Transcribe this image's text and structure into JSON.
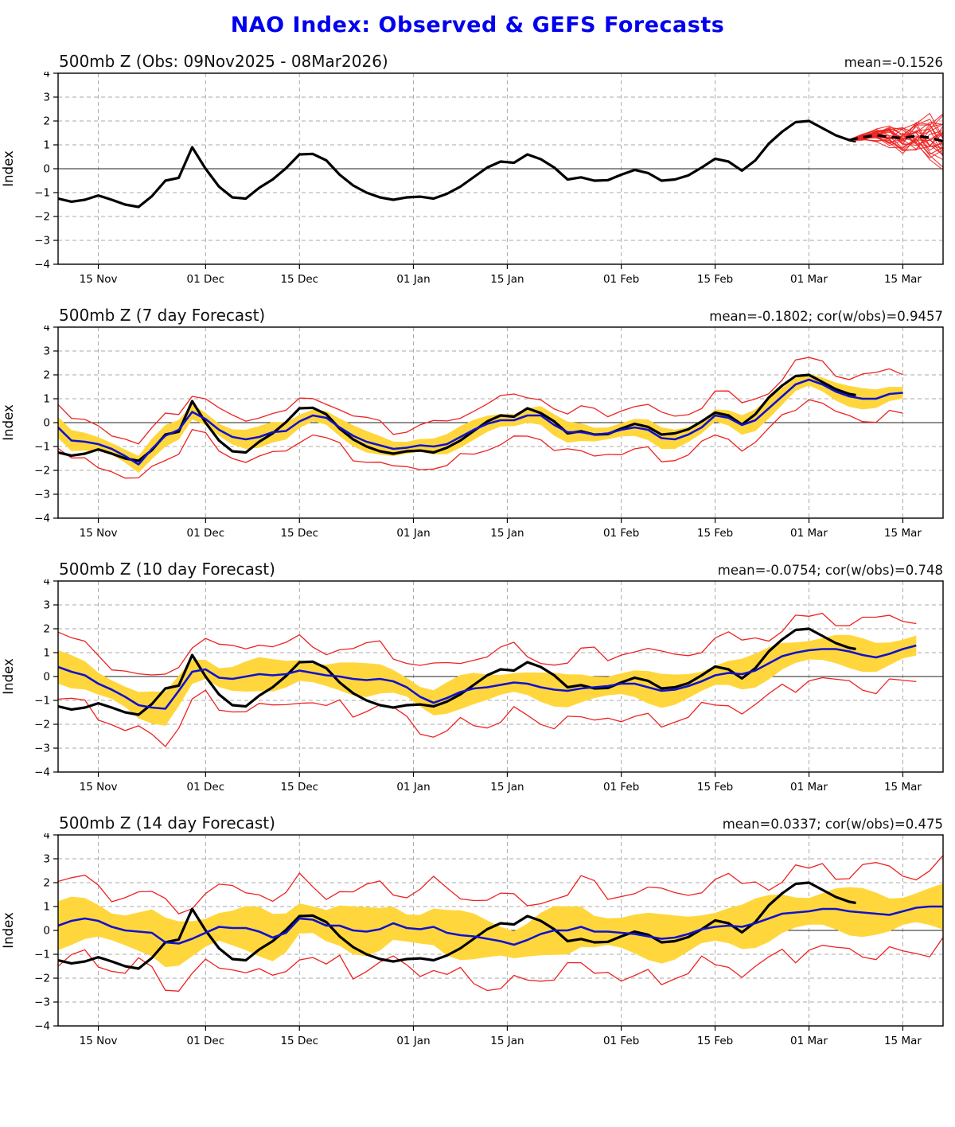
{
  "title": "NAO Index: Observed & GEFS Forecasts",
  "title_color": "#0000ee",
  "colors": {
    "obs": "#000000",
    "forecast_mean": "#1111cc",
    "spread_band": "#ffd73d",
    "envelope": "#ee2222",
    "grid": "#aaaaaa",
    "zero_line": "#222222"
  },
  "x_axis": {
    "tick_labels": [
      "15 Nov",
      "01 Dec",
      "15 Dec",
      "01 Jan",
      "15 Jan",
      "01 Feb",
      "15 Feb",
      "01 Mar",
      "15 Mar"
    ],
    "tick_days": [
      6,
      22,
      36,
      53,
      67,
      84,
      98,
      112,
      126
    ],
    "domain_days": [
      0,
      132
    ]
  },
  "y_axis": {
    "label": "Index",
    "ticks": [
      4,
      3,
      2,
      1,
      0,
      -1,
      -2,
      -3,
      -4
    ],
    "range": [
      -4,
      4
    ]
  },
  "observed": {
    "day_start": 0,
    "day_step": 2,
    "last_day": 119,
    "values": [
      -1.25,
      -1.38,
      -1.3,
      -1.12,
      -1.3,
      -1.5,
      -1.6,
      -1.15,
      -0.5,
      -0.38,
      0.9,
      0.0,
      -0.75,
      -1.2,
      -1.25,
      -0.8,
      -0.45,
      0.02,
      0.6,
      0.62,
      0.35,
      -0.25,
      -0.7,
      -1.0,
      -1.2,
      -1.3,
      -1.2,
      -1.17,
      -1.25,
      -1.05,
      -0.75,
      -0.35,
      0.05,
      0.3,
      0.25,
      0.6,
      0.4,
      0.05,
      -0.45,
      -0.36,
      -0.5,
      -0.48,
      -0.25,
      -0.05,
      -0.18,
      -0.5,
      -0.45,
      -0.28,
      0.05,
      0.42,
      0.3,
      -0.08,
      0.35,
      1.05,
      1.55,
      1.95,
      2.0,
      1.7,
      1.4,
      1.2,
      1.15
    ]
  },
  "chart_data": [
    {
      "type": "line",
      "title": "500mb Z (Obs: 09Nov2025 - 08Mar2026)",
      "stats": "mean=-0.1526",
      "ensemble": {
        "day_start": 118,
        "day_step": 2,
        "members": 26,
        "mean": [
          1.2,
          1.32,
          1.4,
          1.33,
          1.28,
          1.38,
          1.3,
          1.15
        ],
        "spread": [
          0.03,
          0.12,
          0.28,
          0.42,
          0.55,
          0.7,
          0.85,
          1.0
        ]
      }
    },
    {
      "type": "line",
      "title": "500mb Z (7 day Forecast)",
      "stats": "mean=-0.1802; cor(w/obs)=0.9457",
      "forecast": {
        "day_step": 2,
        "yellow_halfwidth": 0.35,
        "red_halfwidth": 0.85,
        "values": [
          -0.2,
          -0.75,
          -0.8,
          -0.9,
          -1.1,
          -1.4,
          -1.75,
          -1.1,
          -0.55,
          -0.3,
          0.45,
          0.15,
          -0.3,
          -0.6,
          -0.7,
          -0.6,
          -0.4,
          -0.35,
          0.05,
          0.3,
          0.2,
          -0.2,
          -0.55,
          -0.8,
          -0.95,
          -1.1,
          -1.05,
          -0.95,
          -1.0,
          -0.9,
          -0.6,
          -0.3,
          -0.05,
          0.1,
          0.1,
          0.3,
          0.3,
          -0.1,
          -0.4,
          -0.4,
          -0.5,
          -0.45,
          -0.3,
          -0.2,
          -0.3,
          -0.65,
          -0.7,
          -0.5,
          -0.2,
          0.3,
          0.2,
          -0.1,
          0.1,
          0.6,
          1.1,
          1.6,
          1.8,
          1.6,
          1.3,
          1.1,
          1.0,
          1.0,
          1.2,
          1.25
        ]
      }
    },
    {
      "type": "line",
      "title": "500mb Z (10 day Forecast)",
      "stats": "mean=-0.0754; cor(w/obs)=0.748",
      "forecast": {
        "day_step": 2,
        "yellow_halfwidth": 0.55,
        "red_halfwidth": 1.3,
        "values": [
          0.4,
          0.2,
          0.05,
          -0.3,
          -0.55,
          -0.85,
          -1.2,
          -1.3,
          -1.35,
          -0.6,
          0.2,
          0.3,
          -0.05,
          -0.1,
          0.0,
          0.1,
          0.05,
          0.1,
          0.25,
          0.15,
          0.05,
          0.0,
          -0.1,
          -0.15,
          -0.1,
          -0.2,
          -0.45,
          -0.85,
          -1.1,
          -0.9,
          -0.65,
          -0.5,
          -0.45,
          -0.35,
          -0.25,
          -0.3,
          -0.45,
          -0.55,
          -0.6,
          -0.5,
          -0.45,
          -0.4,
          -0.3,
          -0.3,
          -0.45,
          -0.6,
          -0.55,
          -0.4,
          -0.2,
          0.05,
          0.15,
          0.1,
          0.25,
          0.55,
          0.85,
          1.0,
          1.1,
          1.15,
          1.15,
          1.05,
          0.9,
          0.8,
          0.95,
          1.15,
          1.3
        ]
      }
    },
    {
      "type": "line",
      "title": "500mb Z (14 day Forecast)",
      "stats": "mean=0.0337; cor(w/obs)=0.475",
      "forecast": {
        "day_step": 2,
        "yellow_halfwidth": 0.8,
        "red_halfwidth": 1.65,
        "values": [
          0.2,
          0.4,
          0.5,
          0.4,
          0.15,
          0.0,
          -0.05,
          -0.1,
          -0.5,
          -0.55,
          -0.35,
          -0.1,
          0.15,
          0.1,
          0.1,
          -0.05,
          -0.3,
          -0.1,
          0.5,
          0.45,
          0.2,
          0.2,
          0.0,
          -0.05,
          0.05,
          0.3,
          0.1,
          0.05,
          0.15,
          -0.1,
          -0.2,
          -0.25,
          -0.35,
          -0.45,
          -0.6,
          -0.4,
          -0.15,
          0.0,
          0.0,
          0.15,
          -0.05,
          -0.05,
          -0.1,
          -0.15,
          -0.25,
          -0.35,
          -0.3,
          -0.15,
          0.05,
          0.15,
          0.2,
          0.15,
          0.3,
          0.5,
          0.7,
          0.75,
          0.8,
          0.9,
          0.9,
          0.8,
          0.75,
          0.7,
          0.65,
          0.8,
          0.95,
          1.0,
          1.0
        ]
      }
    }
  ]
}
